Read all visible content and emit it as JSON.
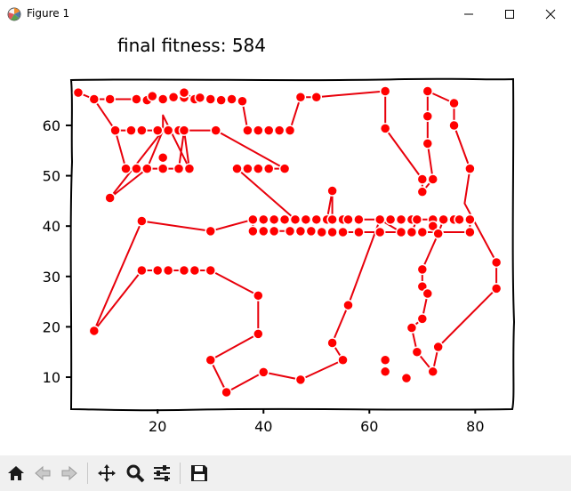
{
  "window": {
    "title": "Figure 1",
    "icon": "matplotlib-icon",
    "controls": [
      "minimize-icon",
      "maximize-icon",
      "close-icon"
    ]
  },
  "figure": {
    "title_prefix": "final fitness: ",
    "fitness": "584"
  },
  "toolbar": {
    "buttons": [
      "home-icon",
      "back-arrow-icon",
      "forward-arrow-icon",
      "pan-icon",
      "zoom-icon",
      "configure-subplots-icon",
      "save-icon"
    ]
  },
  "chart_data": {
    "type": "line",
    "title": "final fitness: 584",
    "xlabel": "",
    "ylabel": "",
    "xlim": [
      4,
      87
    ],
    "ylim": [
      4,
      69
    ],
    "xticks": [
      20,
      40,
      60,
      80
    ],
    "yticks": [
      10,
      20,
      30,
      40,
      50,
      60
    ],
    "line_color": "#e8000b",
    "marker_color": "#ff0000",
    "marker_edge": "#ffffff",
    "grid": false,
    "style": "xkcd",
    "route": [
      [
        5,
        66.5
      ],
      [
        8,
        65.2
      ],
      [
        11,
        65.2
      ],
      [
        16,
        65.2
      ],
      [
        18,
        65
      ],
      [
        19,
        65.8
      ],
      [
        21,
        65.2
      ],
      [
        23,
        65.6
      ],
      [
        25,
        65.5
      ],
      [
        25,
        66.5
      ],
      [
        27,
        65.2
      ],
      [
        28,
        65.5
      ],
      [
        30,
        65.2
      ],
      [
        32,
        65
      ],
      [
        34,
        65.2
      ],
      [
        36,
        64.8
      ],
      [
        37,
        59
      ],
      [
        39,
        59
      ],
      [
        41,
        59
      ],
      [
        43,
        59
      ],
      [
        45,
        59
      ],
      [
        47,
        65.6
      ],
      [
        50,
        65.6
      ],
      [
        63,
        66.8
      ],
      [
        63,
        59.4
      ],
      [
        70,
        49.3
      ],
      [
        70,
        46.8
      ],
      [
        72,
        49.3
      ],
      [
        71,
        56.4
      ],
      [
        71,
        61.8
      ],
      [
        71,
        66.8
      ],
      [
        76,
        64.4
      ],
      [
        76,
        60
      ],
      [
        79,
        51.4
      ],
      [
        78,
        44.5
      ],
      [
        84,
        32.8
      ],
      [
        84,
        27.6
      ],
      [
        73,
        16
      ],
      [
        72,
        11.1
      ],
      [
        69,
        15
      ],
      [
        68,
        19.8
      ],
      [
        70,
        21.6
      ],
      [
        71,
        26.6
      ],
      [
        70,
        28
      ],
      [
        70,
        31.4
      ],
      [
        73,
        38.5
      ],
      [
        74,
        41.3
      ],
      [
        72,
        41.3
      ],
      [
        69,
        41.3
      ],
      [
        68,
        38.8
      ],
      [
        66,
        38.8
      ],
      [
        62,
        41.3
      ],
      [
        58,
        41.3
      ],
      [
        56,
        41.3
      ],
      [
        55,
        41.3
      ],
      [
        53,
        41.3
      ],
      [
        53,
        47
      ],
      [
        52,
        41.3
      ],
      [
        50,
        41.3
      ],
      [
        48,
        41.3
      ],
      [
        46,
        41.3
      ],
      [
        44,
        41.3
      ],
      [
        42,
        41.3
      ],
      [
        40,
        41.3
      ],
      [
        38,
        41.3
      ],
      [
        38,
        39
      ],
      [
        40,
        39
      ],
      [
        42,
        39
      ],
      [
        45,
        39
      ],
      [
        47,
        39
      ],
      [
        49,
        39
      ],
      [
        51,
        38.8
      ],
      [
        53,
        38.8
      ],
      [
        55,
        38.8
      ],
      [
        58,
        38.8
      ],
      [
        62,
        38.8
      ],
      [
        66,
        38.8
      ],
      [
        70,
        38.8
      ],
      [
        72,
        38.8
      ],
      [
        76,
        38.8
      ],
      [
        79,
        38.8
      ],
      [
        79,
        41.3
      ],
      [
        77,
        41.3
      ],
      [
        76,
        41.3
      ],
      [
        72,
        41.3
      ],
      [
        69,
        41.3
      ],
      [
        68,
        41.3
      ],
      [
        64,
        41.3
      ],
      [
        62,
        41.3
      ],
      [
        56,
        24.3
      ],
      [
        53,
        16.8
      ],
      [
        55,
        13.4
      ],
      [
        47,
        9.5
      ],
      [
        40,
        11
      ],
      [
        33,
        7
      ],
      [
        30,
        13.4
      ],
      [
        39,
        18.6
      ],
      [
        39,
        26.2
      ],
      [
        30,
        31.2
      ],
      [
        27,
        31.2
      ],
      [
        25,
        31.2
      ],
      [
        22,
        31.2
      ],
      [
        20,
        31.2
      ],
      [
        17,
        31.2
      ],
      [
        8,
        19.2
      ],
      [
        17,
        41
      ],
      [
        30,
        39
      ],
      [
        38,
        41.3
      ],
      [
        40,
        41.3
      ],
      [
        42,
        41.3
      ],
      [
        44,
        41.3
      ],
      [
        48,
        41.3
      ],
      [
        46,
        41.3
      ],
      [
        35,
        51.4
      ],
      [
        37,
        51.4
      ],
      [
        39,
        51.4
      ],
      [
        41,
        51.4
      ],
      [
        44,
        51.4
      ],
      [
        31,
        59
      ],
      [
        27,
        59
      ],
      [
        24,
        59
      ],
      [
        22,
        59
      ],
      [
        20,
        59
      ],
      [
        17,
        59
      ],
      [
        15,
        59
      ],
      [
        12,
        59
      ],
      [
        14,
        51.4
      ],
      [
        16,
        51.4
      ],
      [
        18,
        51.4
      ],
      [
        21,
        51.4
      ],
      [
        24,
        51.4
      ],
      [
        25,
        59
      ],
      [
        21,
        59
      ],
      [
        18,
        51.4
      ],
      [
        11,
        45.6
      ],
      [
        21,
        59
      ],
      [
        21,
        62
      ],
      [
        26,
        51.4
      ],
      [
        25,
        59
      ],
      [
        20,
        59
      ],
      [
        17,
        59
      ],
      [
        12,
        59
      ],
      [
        8,
        65.2
      ],
      [
        5,
        66.5
      ]
    ],
    "cities": [
      [
        5,
        66.5
      ],
      [
        8,
        65.2
      ],
      [
        11,
        65.2
      ],
      [
        16,
        65.2
      ],
      [
        18,
        65
      ],
      [
        19,
        65.8
      ],
      [
        21,
        65.2
      ],
      [
        23,
        65.6
      ],
      [
        25,
        65.5
      ],
      [
        25,
        66.5
      ],
      [
        27,
        65.2
      ],
      [
        28,
        65.5
      ],
      [
        30,
        65.2
      ],
      [
        32,
        65
      ],
      [
        34,
        65.2
      ],
      [
        36,
        64.8
      ],
      [
        12,
        59
      ],
      [
        15,
        59
      ],
      [
        17,
        59
      ],
      [
        20,
        59
      ],
      [
        22,
        59
      ],
      [
        24,
        59
      ],
      [
        25,
        59
      ],
      [
        31,
        59
      ],
      [
        37,
        59
      ],
      [
        39,
        59
      ],
      [
        41,
        59
      ],
      [
        43,
        59
      ],
      [
        45,
        59
      ],
      [
        14,
        51.4
      ],
      [
        16,
        51.4
      ],
      [
        18,
        51.4
      ],
      [
        21,
        51.4
      ],
      [
        24,
        51.4
      ],
      [
        26,
        51.4
      ],
      [
        21,
        53.6
      ],
      [
        11,
        45.6
      ],
      [
        35,
        51.4
      ],
      [
        37,
        51.4
      ],
      [
        39,
        51.4
      ],
      [
        41,
        51.4
      ],
      [
        44,
        51.4
      ],
      [
        47,
        65.6
      ],
      [
        50,
        65.6
      ],
      [
        63,
        66.8
      ],
      [
        63,
        59.4
      ],
      [
        70,
        49.3
      ],
      [
        70,
        46.8
      ],
      [
        72,
        49.3
      ],
      [
        71,
        56.4
      ],
      [
        71,
        61.8
      ],
      [
        71,
        66.8
      ],
      [
        76,
        64.4
      ],
      [
        76,
        60
      ],
      [
        79,
        51.4
      ],
      [
        53,
        47
      ],
      [
        17,
        41
      ],
      [
        30,
        39
      ],
      [
        38,
        41.3
      ],
      [
        40,
        41.3
      ],
      [
        42,
        41.3
      ],
      [
        44,
        41.3
      ],
      [
        46,
        41.3
      ],
      [
        48,
        41.3
      ],
      [
        50,
        41.3
      ],
      [
        52,
        41.3
      ],
      [
        53,
        41.3
      ],
      [
        55,
        41.3
      ],
      [
        56,
        41.3
      ],
      [
        58,
        41.3
      ],
      [
        62,
        41.3
      ],
      [
        64,
        41.3
      ],
      [
        66,
        41.3
      ],
      [
        68,
        41.3
      ],
      [
        69,
        41.3
      ],
      [
        72,
        41.3
      ],
      [
        74,
        41.3
      ],
      [
        76,
        41.3
      ],
      [
        77,
        41.3
      ],
      [
        79,
        41.3
      ],
      [
        38,
        39
      ],
      [
        40,
        39
      ],
      [
        42,
        39
      ],
      [
        45,
        39
      ],
      [
        47,
        39
      ],
      [
        49,
        39
      ],
      [
        51,
        38.8
      ],
      [
        53,
        38.8
      ],
      [
        55,
        38.8
      ],
      [
        58,
        38.8
      ],
      [
        62,
        38.8
      ],
      [
        66,
        38.8
      ],
      [
        68,
        38.8
      ],
      [
        70,
        38.8
      ],
      [
        72,
        40
      ],
      [
        73,
        38.5
      ],
      [
        79,
        38.8
      ],
      [
        17,
        31.2
      ],
      [
        20,
        31.2
      ],
      [
        22,
        31.2
      ],
      [
        25,
        31.2
      ],
      [
        27,
        31.2
      ],
      [
        30,
        31.2
      ],
      [
        39,
        26.2
      ],
      [
        39,
        18.6
      ],
      [
        30,
        13.4
      ],
      [
        33,
        7
      ],
      [
        40,
        11
      ],
      [
        47,
        9.5
      ],
      [
        55,
        13.4
      ],
      [
        53,
        16.8
      ],
      [
        56,
        24.3
      ],
      [
        8,
        19.2
      ],
      [
        84,
        32.8
      ],
      [
        84,
        27.6
      ],
      [
        70,
        31.4
      ],
      [
        70,
        28
      ],
      [
        71,
        26.6
      ],
      [
        70,
        21.6
      ],
      [
        68,
        19.8
      ],
      [
        69,
        15
      ],
      [
        72,
        11.1
      ],
      [
        73,
        16
      ],
      [
        63,
        11.1
      ],
      [
        67,
        9.8
      ],
      [
        63,
        13.4
      ]
    ]
  }
}
